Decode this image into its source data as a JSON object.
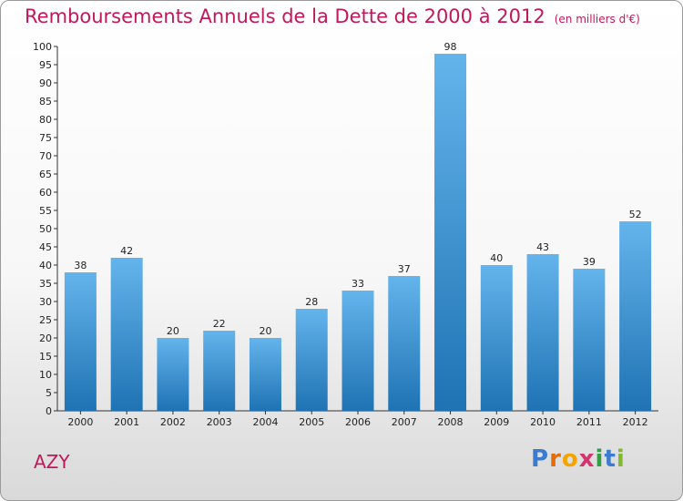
{
  "header": {
    "title": "Remboursements Annuels de la Dette de 2000 à 2012",
    "unit": "(en milliers d'€)"
  },
  "footer": {
    "commune": "AZY",
    "logo": {
      "letters": [
        "P",
        "r",
        "o",
        "x",
        "i",
        "t",
        "i"
      ],
      "colors": [
        "#3b7ccf",
        "#e36c0a",
        "#f4a300",
        "#d6336c",
        "#2f9e44",
        "#3b7ccf",
        "#82b92e"
      ]
    }
  },
  "colors": {
    "bar_top": "#64b4ec",
    "bar_bottom": "#1f73b3",
    "axis": "#333333"
  },
  "chart_data": {
    "type": "bar",
    "categories": [
      "2000",
      "2001",
      "2002",
      "2003",
      "2004",
      "2005",
      "2006",
      "2007",
      "2008",
      "2009",
      "2010",
      "2011",
      "2012"
    ],
    "values": [
      38,
      42,
      20,
      22,
      20,
      28,
      33,
      37,
      98,
      40,
      43,
      39,
      52
    ],
    "title": "Remboursements Annuels de la Dette de 2000 à 2012",
    "xlabel": "",
    "ylabel": "",
    "ylim": [
      0,
      100
    ],
    "ytick_step": 5,
    "grid": false,
    "data_labels": true
  }
}
